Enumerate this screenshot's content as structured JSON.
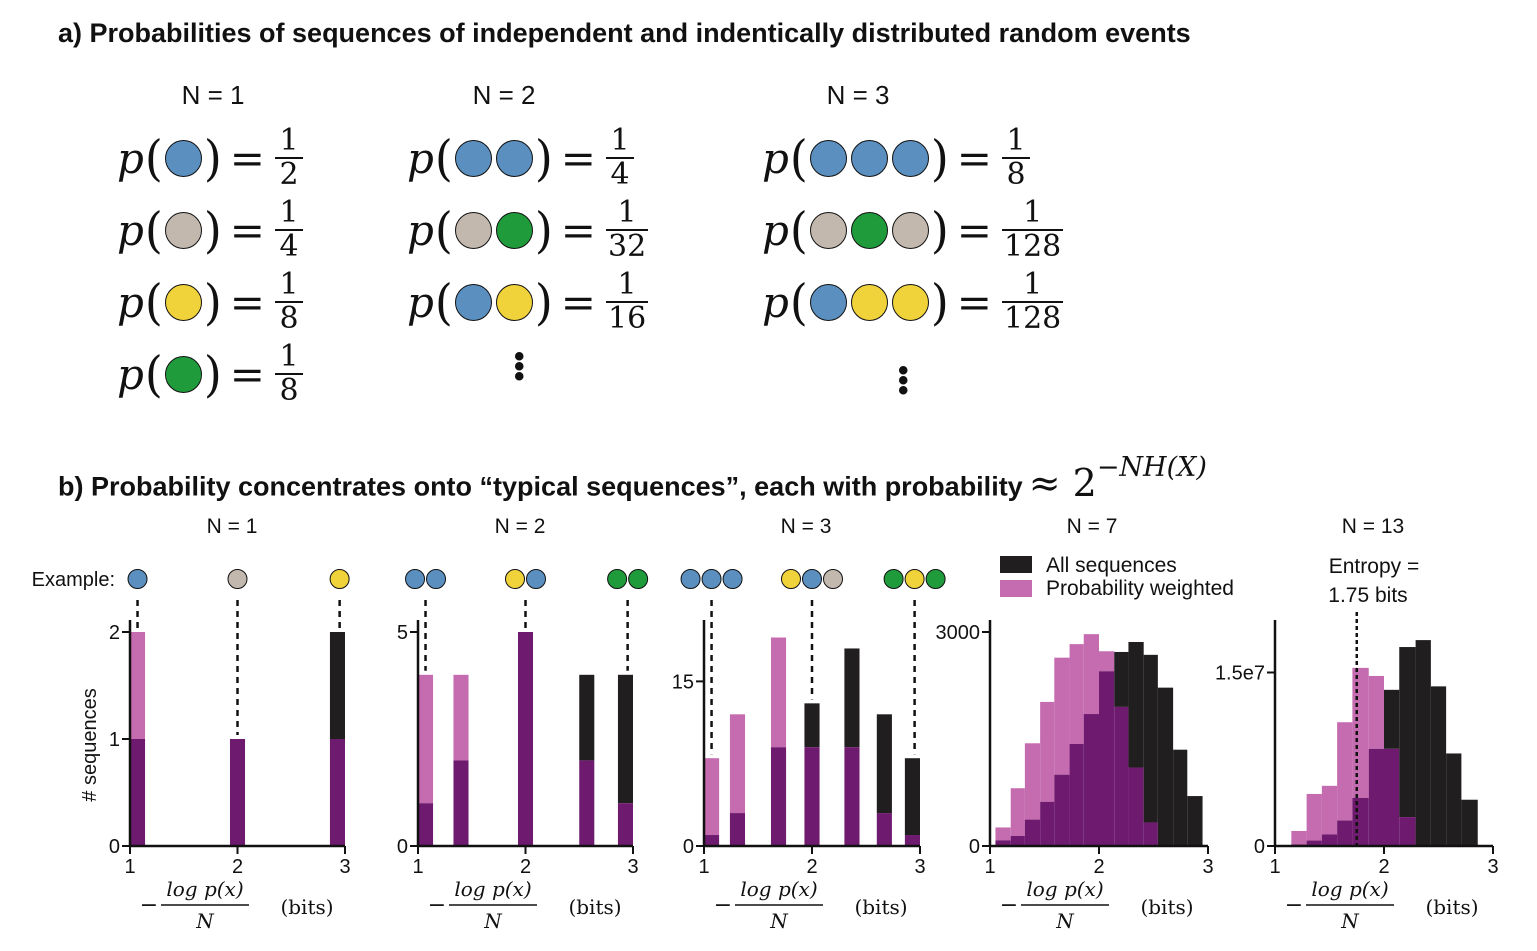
{
  "section_a": {
    "title": "a) Probabilities of sequences of independent and indentically distributed random events",
    "function_symbol": "p",
    "groups": [
      {
        "label": "N = 1",
        "rows": [
          {
            "balls": [
              "blue"
            ],
            "num": "1",
            "den": "2"
          },
          {
            "balls": [
              "gray"
            ],
            "num": "1",
            "den": "4"
          },
          {
            "balls": [
              "yellow"
            ],
            "num": "1",
            "den": "8"
          },
          {
            "balls": [
              "green"
            ],
            "num": "1",
            "den": "8"
          }
        ]
      },
      {
        "label": "N = 2",
        "rows": [
          {
            "balls": [
              "blue",
              "blue"
            ],
            "num": "1",
            "den": "4"
          },
          {
            "balls": [
              "gray",
              "green"
            ],
            "num": "1",
            "den": "32"
          },
          {
            "balls": [
              "blue",
              "yellow"
            ],
            "num": "1",
            "den": "16"
          }
        ]
      },
      {
        "label": "N = 3",
        "rows": [
          {
            "balls": [
              "blue",
              "blue",
              "blue"
            ],
            "num": "1",
            "den": "8"
          },
          {
            "balls": [
              "gray",
              "green",
              "gray"
            ],
            "num": "1",
            "den": "128"
          },
          {
            "balls": [
              "blue",
              "yellow",
              "yellow"
            ],
            "num": "1",
            "den": "128"
          }
        ]
      }
    ],
    "ellipsis": "⋮"
  },
  "section_b": {
    "title": "b) Probability concentrates onto “typical sequences”, each with probability",
    "approx_prefix": "≈ 2",
    "approx_exponent": "−NH(X)",
    "ylabel": "# sequences",
    "example_label": "Example:",
    "xlabel_num": "log p(x)",
    "xlabel_den": "N",
    "xlabel_unit": "(bits)",
    "legend": {
      "all": "All sequences",
      "weighted": "Probability weighted"
    },
    "entropy_note": [
      "Entropy =",
      "1.75 bits"
    ],
    "entropy_value": 1.75
  },
  "colors": {
    "blue": "#5b8fbf",
    "gray": "#c2b8ae",
    "yellow": "#f0d23a",
    "green": "#1f9b3c",
    "all_sequences": "#211e1f",
    "probability_weighted": "#c56bb0",
    "overlap": "#6e1a6f"
  },
  "chart_data": [
    {
      "type": "bar",
      "title": "N = 1",
      "xlim": [
        1,
        3
      ],
      "ylim": [
        0,
        2
      ],
      "xticks": [
        1,
        2,
        3
      ],
      "yticks": [
        0,
        1,
        2
      ],
      "ytick_labels": [
        "0",
        "1",
        "2"
      ],
      "examples": [
        {
          "x": 1.07,
          "balls": [
            "blue"
          ]
        },
        {
          "x": 2.0,
          "balls": [
            "gray"
          ]
        },
        {
          "x": 2.95,
          "balls": [
            "yellow"
          ]
        }
      ],
      "bars": [
        {
          "x0": 1.0,
          "x1": 1.14,
          "all": 1,
          "weighted": 2
        },
        {
          "x0": 1.93,
          "x1": 2.07,
          "all": 1,
          "weighted": 1
        },
        {
          "x0": 2.86,
          "x1": 3.0,
          "all": 2,
          "weighted": 1
        }
      ]
    },
    {
      "type": "bar",
      "title": "N = 2",
      "xlim": [
        1,
        3
      ],
      "ylim": [
        0,
        5
      ],
      "xticks": [
        1,
        2,
        3
      ],
      "yticks": [
        0,
        5
      ],
      "ytick_labels": [
        "0",
        "5"
      ],
      "examples": [
        {
          "x": 1.07,
          "balls": [
            "blue",
            "blue"
          ]
        },
        {
          "x": 2.0,
          "balls": [
            "yellow",
            "blue"
          ]
        },
        {
          "x": 2.95,
          "balls": [
            "green",
            "green"
          ]
        }
      ],
      "bars": [
        {
          "x0": 1.0,
          "x1": 1.14,
          "all": 1,
          "weighted": 4
        },
        {
          "x0": 1.33,
          "x1": 1.47,
          "all": 2,
          "weighted": 4
        },
        {
          "x0": 1.93,
          "x1": 2.07,
          "all": 5,
          "weighted": 5
        },
        {
          "x0": 2.5,
          "x1": 2.64,
          "all": 4,
          "weighted": 2
        },
        {
          "x0": 2.86,
          "x1": 3.0,
          "all": 4,
          "weighted": 1
        }
      ]
    },
    {
      "type": "bar",
      "title": "N = 3",
      "xlim": [
        1,
        3
      ],
      "ylim": [
        0,
        19.5
      ],
      "xticks": [
        1,
        2,
        3
      ],
      "yticks": [
        0,
        15
      ],
      "ytick_labels": [
        "0",
        "15"
      ],
      "examples": [
        {
          "x": 1.07,
          "balls": [
            "blue",
            "blue",
            "blue"
          ]
        },
        {
          "x": 2.0,
          "balls": [
            "yellow",
            "blue",
            "gray"
          ]
        },
        {
          "x": 2.95,
          "balls": [
            "green",
            "yellow",
            "green"
          ]
        }
      ],
      "bars": [
        {
          "x0": 1.0,
          "x1": 1.14,
          "all": 1,
          "weighted": 8
        },
        {
          "x0": 1.24,
          "x1": 1.38,
          "all": 3,
          "weighted": 12
        },
        {
          "x0": 1.62,
          "x1": 1.76,
          "all": 9,
          "weighted": 19
        },
        {
          "x0": 1.93,
          "x1": 2.07,
          "all": 13,
          "weighted": 9
        },
        {
          "x0": 2.3,
          "x1": 2.44,
          "all": 18,
          "weighted": 9
        },
        {
          "x0": 2.6,
          "x1": 2.74,
          "all": 12,
          "weighted": 3
        },
        {
          "x0": 2.86,
          "x1": 3.0,
          "all": 8,
          "weighted": 1
        }
      ]
    },
    {
      "type": "histogram",
      "title": "N = 7",
      "xlim": [
        1,
        3
      ],
      "ylim": [
        0,
        3000
      ],
      "xticks": [
        1,
        2,
        3
      ],
      "yticks": [
        0,
        3000
      ],
      "ytick_labels": [
        "0",
        "3000"
      ],
      "bins": [
        1.05,
        1.19,
        1.32,
        1.46,
        1.59,
        1.73,
        1.86,
        2.0,
        2.14,
        2.27,
        2.41,
        2.54,
        2.68,
        2.81,
        2.95
      ],
      "all": [
        80,
        140,
        370,
        620,
        1000,
        1430,
        1850,
        2450,
        2720,
        2860,
        2680,
        2220,
        1350,
        700
      ],
      "weighted": [
        260,
        810,
        1440,
        2020,
        2640,
        2830,
        2970,
        2730,
        1950,
        1100,
        330,
        0,
        0,
        0
      ]
    },
    {
      "type": "histogram",
      "title": "N = 13",
      "xlim": [
        1,
        3
      ],
      "ylim": [
        0,
        18500000.0
      ],
      "xticks": [
        1,
        2,
        3
      ],
      "yticks": [
        0,
        15000000.0
      ],
      "ytick_labels": [
        "0",
        "1.5e7"
      ],
      "bins": [
        1.15,
        1.29,
        1.43,
        1.57,
        1.71,
        1.86,
        2.0,
        2.14,
        2.29,
        2.43,
        2.57,
        2.71,
        2.86
      ],
      "all": [
        130000,
        470000,
        1000000,
        2200000,
        4150000,
        8400000,
        13500000,
        17200000,
        17800000,
        13800000,
        8000000,
        4000000,
        1400000
      ],
      "weighted": [
        1300000,
        4500000,
        5200000,
        10700000,
        15400000,
        14700000,
        8400000,
        2500000,
        0,
        0,
        0,
        0,
        0
      ]
    }
  ]
}
